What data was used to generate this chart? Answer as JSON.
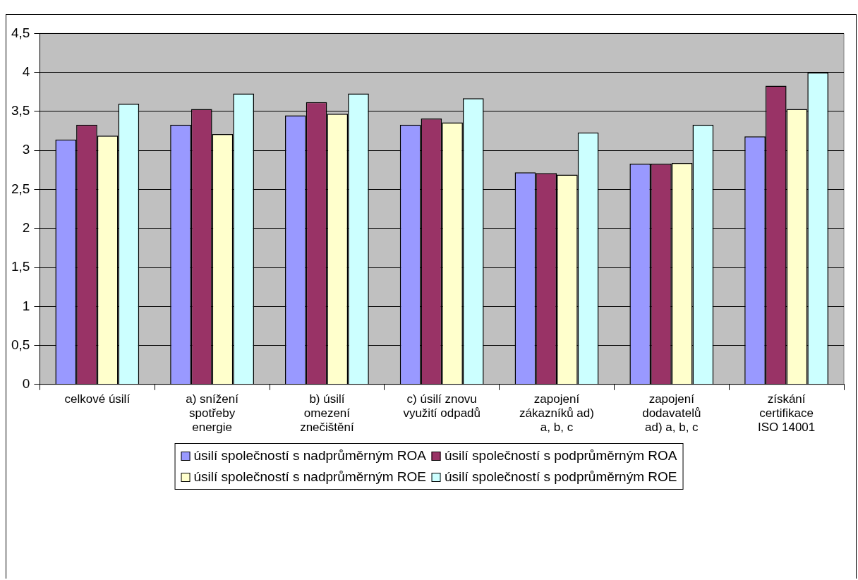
{
  "chart_data": {
    "type": "bar",
    "categories": [
      "celkové úsilí",
      "a) snížení spotřeby energie",
      "b) úsilí omezení znečištění",
      "c) úsilí znovu využití odpadů",
      "zapojení zákazníků ad) a, b, c",
      "zapojení dodavatelů ad) a, b, c",
      "získání certifikace ISO 14001"
    ],
    "series": [
      {
        "name": "úsilí společností s nadprůměrným ROA",
        "color": "#9999ff",
        "values": [
          3.14,
          3.33,
          3.45,
          3.33,
          2.72,
          2.83,
          3.18
        ]
      },
      {
        "name": "úsilí společností s podprůměrným ROA",
        "color": "#993366",
        "values": [
          3.33,
          3.53,
          3.62,
          3.41,
          2.71,
          2.83,
          3.83
        ]
      },
      {
        "name": "úsilí společností s nadprůměrným ROE",
        "color": "#ffffcc",
        "values": [
          3.19,
          3.21,
          3.47,
          3.36,
          2.69,
          2.84,
          3.53
        ]
      },
      {
        "name": "úsilí společností s podprůměrným ROE",
        "color": "#ccffff",
        "values": [
          3.6,
          3.73,
          3.73,
          3.67,
          3.23,
          3.33,
          4.0
        ]
      }
    ],
    "ylim": [
      0,
      4.5
    ],
    "yticks": [
      0,
      {
        "value": 0.5,
        "label": "0,5"
      },
      1,
      {
        "value": 1.5,
        "label": "1,5"
      },
      2,
      {
        "value": 2.5,
        "label": "2,5"
      },
      3,
      {
        "value": 3.5,
        "label": "3,5"
      },
      4,
      {
        "value": 4.5,
        "label": "4,5"
      }
    ],
    "grid": "y",
    "legend": "bottom"
  }
}
